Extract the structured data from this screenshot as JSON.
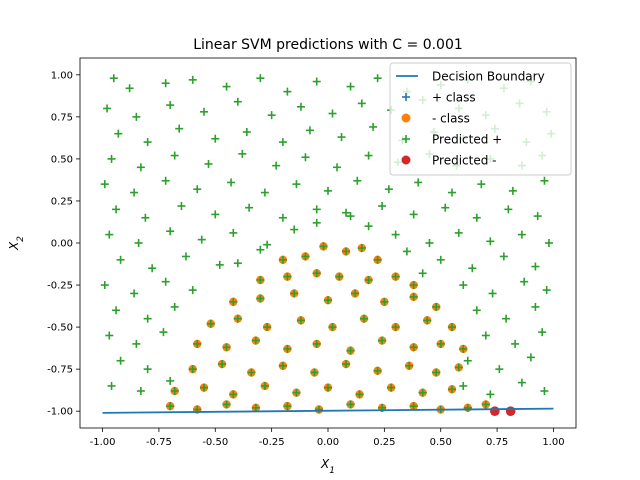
{
  "chart_data": {
    "type": "scatter",
    "title": "Linear SVM predictions with C = 0.001",
    "xlabel": "X_1",
    "ylabel": "X_2",
    "xlim": [
      -1.1,
      1.1
    ],
    "ylim": [
      -1.1,
      1.1
    ],
    "xticks": [
      "-1.00",
      "-0.75",
      "-0.50",
      "-0.25",
      "0.00",
      "0.25",
      "0.50",
      "0.75",
      "1.00"
    ],
    "xtick_values": [
      -1.0,
      -0.75,
      -0.5,
      -0.25,
      0.0,
      0.25,
      0.5,
      0.75,
      1.0
    ],
    "yticks": [
      "-1.00",
      "-0.75",
      "-0.50",
      "-0.25",
      "0.00",
      "0.25",
      "0.50",
      "0.75",
      "1.00"
    ],
    "ytick_values": [
      -1.0,
      -0.75,
      -0.5,
      -0.25,
      0.0,
      0.25,
      0.5,
      0.75,
      1.0
    ],
    "grid": false,
    "legend_position": "top-right",
    "legend": [
      {
        "label": "Decision Boundary",
        "kind": "line",
        "color": "#1f77b4"
      },
      {
        "label": "+ class",
        "kind": "plus",
        "color": "#1f77b4"
      },
      {
        "label": "- class",
        "kind": "dot",
        "color": "#ff7f0e"
      },
      {
        "label": "Predicted +",
        "kind": "plus",
        "color": "#2ca02c"
      },
      {
        "label": "Predicted -",
        "kind": "dot",
        "color": "#d62728"
      }
    ],
    "decision_boundary": {
      "x": [
        -1.0,
        1.0
      ],
      "y": [
        -1.01,
        -0.985
      ]
    },
    "plus_class_points": [
      [
        -0.95,
        0.98
      ],
      [
        -0.88,
        0.92
      ],
      [
        -0.72,
        0.95
      ],
      [
        -0.6,
        0.97
      ],
      [
        -0.45,
        0.93
      ],
      [
        -0.3,
        0.98
      ],
      [
        -0.18,
        0.9
      ],
      [
        -0.05,
        0.96
      ],
      [
        0.1,
        0.93
      ],
      [
        0.22,
        0.98
      ],
      [
        0.35,
        0.9
      ],
      [
        0.5,
        0.94
      ],
      [
        0.62,
        0.97
      ],
      [
        0.78,
        0.92
      ],
      [
        0.9,
        0.96
      ],
      [
        -0.98,
        0.8
      ],
      [
        -0.85,
        0.75
      ],
      [
        -0.7,
        0.82
      ],
      [
        -0.55,
        0.78
      ],
      [
        -0.4,
        0.84
      ],
      [
        -0.25,
        0.76
      ],
      [
        -0.12,
        0.81
      ],
      [
        0.02,
        0.77
      ],
      [
        0.15,
        0.83
      ],
      [
        0.28,
        0.79
      ],
      [
        0.42,
        0.85
      ],
      [
        0.58,
        0.8
      ],
      [
        0.7,
        0.76
      ],
      [
        0.85,
        0.83
      ],
      [
        0.97,
        0.78
      ],
      [
        -0.93,
        0.65
      ],
      [
        -0.8,
        0.6
      ],
      [
        -0.66,
        0.68
      ],
      [
        -0.5,
        0.62
      ],
      [
        -0.36,
        0.66
      ],
      [
        -0.2,
        0.6
      ],
      [
        -0.08,
        0.67
      ],
      [
        0.06,
        0.63
      ],
      [
        0.2,
        0.69
      ],
      [
        0.33,
        0.61
      ],
      [
        0.47,
        0.66
      ],
      [
        0.6,
        0.62
      ],
      [
        0.74,
        0.68
      ],
      [
        0.88,
        0.6
      ],
      [
        0.99,
        0.65
      ],
      [
        -0.96,
        0.5
      ],
      [
        -0.83,
        0.45
      ],
      [
        -0.68,
        0.52
      ],
      [
        -0.53,
        0.47
      ],
      [
        -0.38,
        0.53
      ],
      [
        -0.23,
        0.46
      ],
      [
        -0.1,
        0.51
      ],
      [
        0.04,
        0.45
      ],
      [
        0.18,
        0.52
      ],
      [
        0.31,
        0.48
      ],
      [
        0.45,
        0.53
      ],
      [
        0.57,
        0.46
      ],
      [
        0.72,
        0.5
      ],
      [
        0.86,
        0.46
      ],
      [
        0.95,
        0.52
      ],
      [
        -0.99,
        0.35
      ],
      [
        -0.86,
        0.3
      ],
      [
        -0.72,
        0.37
      ],
      [
        -0.58,
        0.32
      ],
      [
        -0.43,
        0.36
      ],
      [
        -0.28,
        0.3
      ],
      [
        -0.14,
        0.35
      ],
      [
        0.0,
        0.31
      ],
      [
        0.13,
        0.37
      ],
      [
        0.27,
        0.32
      ],
      [
        0.4,
        0.36
      ],
      [
        0.55,
        0.3
      ],
      [
        0.68,
        0.35
      ],
      [
        0.82,
        0.31
      ],
      [
        0.96,
        0.37
      ],
      [
        -0.94,
        0.2
      ],
      [
        -0.81,
        0.15
      ],
      [
        -0.65,
        0.22
      ],
      [
        -0.5,
        0.17
      ],
      [
        -0.35,
        0.21
      ],
      [
        -0.2,
        0.15
      ],
      [
        -0.05,
        0.2
      ],
      [
        0.1,
        0.16
      ],
      [
        0.24,
        0.22
      ],
      [
        0.38,
        0.17
      ],
      [
        0.52,
        0.21
      ],
      [
        0.66,
        0.15
      ],
      [
        0.8,
        0.2
      ],
      [
        0.93,
        0.16
      ],
      [
        -0.97,
        0.05
      ],
      [
        -0.84,
        0.0
      ],
      [
        -0.7,
        0.07
      ],
      [
        -0.56,
        0.02
      ],
      [
        -0.42,
        0.06
      ],
      [
        -0.27,
        -0.01
      ],
      [
        0.3,
        0.05
      ],
      [
        0.45,
        0.0
      ],
      [
        0.58,
        0.06
      ],
      [
        0.72,
        0.01
      ],
      [
        0.86,
        0.05
      ],
      [
        0.98,
        0.0
      ],
      [
        -0.92,
        -0.1
      ],
      [
        -0.78,
        -0.15
      ],
      [
        -0.63,
        -0.08
      ],
      [
        -0.48,
        -0.13
      ],
      [
        0.5,
        -0.1
      ],
      [
        0.64,
        -0.15
      ],
      [
        0.78,
        -0.08
      ],
      [
        0.92,
        -0.14
      ],
      [
        -0.99,
        -0.25
      ],
      [
        -0.86,
        -0.3
      ],
      [
        -0.72,
        -0.23
      ],
      [
        -0.6,
        -0.28
      ],
      [
        0.6,
        -0.25
      ],
      [
        0.73,
        -0.3
      ],
      [
        0.87,
        -0.23
      ],
      [
        0.97,
        -0.28
      ],
      [
        -0.94,
        -0.4
      ],
      [
        -0.8,
        -0.45
      ],
      [
        -0.68,
        -0.38
      ],
      [
        0.66,
        -0.4
      ],
      [
        0.79,
        -0.45
      ],
      [
        0.92,
        -0.38
      ],
      [
        -0.97,
        -0.55
      ],
      [
        -0.85,
        -0.6
      ],
      [
        -0.73,
        -0.53
      ],
      [
        0.7,
        -0.55
      ],
      [
        0.83,
        -0.6
      ],
      [
        0.95,
        -0.53
      ],
      [
        -0.92,
        -0.7
      ],
      [
        -0.8,
        -0.75
      ],
      [
        0.62,
        -0.7
      ],
      [
        0.76,
        -0.75
      ],
      [
        0.9,
        -0.68
      ],
      [
        -0.96,
        -0.85
      ],
      [
        -0.83,
        -0.88
      ],
      [
        -0.7,
        -0.82
      ],
      [
        0.6,
        -0.85
      ],
      [
        0.72,
        -0.9
      ],
      [
        0.86,
        -0.83
      ],
      [
        0.96,
        -0.88
      ],
      [
        -0.05,
        0.12
      ],
      [
        0.08,
        0.18
      ],
      [
        -0.15,
        0.08
      ],
      [
        0.18,
        0.1
      ],
      [
        -0.3,
        -0.04
      ],
      [
        0.35,
        -0.05
      ],
      [
        -0.4,
        -0.12
      ],
      [
        0.42,
        -0.18
      ]
    ],
    "minus_class_points": [
      [
        -0.02,
        -0.02
      ],
      [
        0.08,
        -0.05
      ],
      [
        0.15,
        -0.03
      ],
      [
        -0.1,
        -0.08
      ],
      [
        -0.2,
        -0.1
      ],
      [
        0.22,
        -0.1
      ],
      [
        -0.3,
        -0.22
      ],
      [
        -0.18,
        -0.2
      ],
      [
        -0.05,
        -0.18
      ],
      [
        0.05,
        -0.2
      ],
      [
        0.18,
        -0.22
      ],
      [
        0.3,
        -0.2
      ],
      [
        0.38,
        -0.25
      ],
      [
        -0.42,
        -0.35
      ],
      [
        -0.3,
        -0.33
      ],
      [
        -0.15,
        -0.3
      ],
      [
        0.0,
        -0.34
      ],
      [
        0.12,
        -0.3
      ],
      [
        0.25,
        -0.35
      ],
      [
        0.38,
        -0.32
      ],
      [
        0.48,
        -0.38
      ],
      [
        -0.52,
        -0.48
      ],
      [
        -0.4,
        -0.45
      ],
      [
        -0.27,
        -0.5
      ],
      [
        -0.12,
        -0.46
      ],
      [
        0.02,
        -0.5
      ],
      [
        0.16,
        -0.45
      ],
      [
        0.3,
        -0.5
      ],
      [
        0.44,
        -0.46
      ],
      [
        0.55,
        -0.5
      ],
      [
        -0.58,
        -0.6
      ],
      [
        -0.45,
        -0.62
      ],
      [
        -0.32,
        -0.58
      ],
      [
        -0.18,
        -0.63
      ],
      [
        -0.05,
        -0.6
      ],
      [
        0.1,
        -0.64
      ],
      [
        0.24,
        -0.58
      ],
      [
        0.38,
        -0.62
      ],
      [
        0.5,
        -0.6
      ],
      [
        0.6,
        -0.63
      ],
      [
        -0.6,
        -0.75
      ],
      [
        -0.47,
        -0.72
      ],
      [
        -0.34,
        -0.77
      ],
      [
        -0.2,
        -0.73
      ],
      [
        -0.06,
        -0.77
      ],
      [
        0.08,
        -0.72
      ],
      [
        0.22,
        -0.76
      ],
      [
        0.36,
        -0.73
      ],
      [
        0.48,
        -0.77
      ],
      [
        0.58,
        -0.74
      ],
      [
        -0.68,
        -0.88
      ],
      [
        -0.55,
        -0.86
      ],
      [
        -0.42,
        -0.9
      ],
      [
        -0.28,
        -0.85
      ],
      [
        -0.14,
        -0.89
      ],
      [
        0.0,
        -0.86
      ],
      [
        0.14,
        -0.9
      ],
      [
        0.28,
        -0.86
      ],
      [
        0.42,
        -0.89
      ],
      [
        0.55,
        -0.87
      ],
      [
        -0.7,
        -0.97
      ],
      [
        -0.58,
        -0.99
      ],
      [
        -0.45,
        -0.96
      ],
      [
        -0.32,
        -0.98
      ],
      [
        -0.18,
        -0.97
      ],
      [
        -0.04,
        -0.99
      ],
      [
        0.1,
        -0.96
      ],
      [
        0.24,
        -0.98
      ],
      [
        0.38,
        -0.97
      ],
      [
        0.5,
        -0.99
      ],
      [
        0.62,
        -0.98
      ],
      [
        0.7,
        -0.96
      ]
    ],
    "predicted_minus_points": [
      [
        0.74,
        -1.0
      ],
      [
        0.81,
        -1.0
      ]
    ]
  }
}
